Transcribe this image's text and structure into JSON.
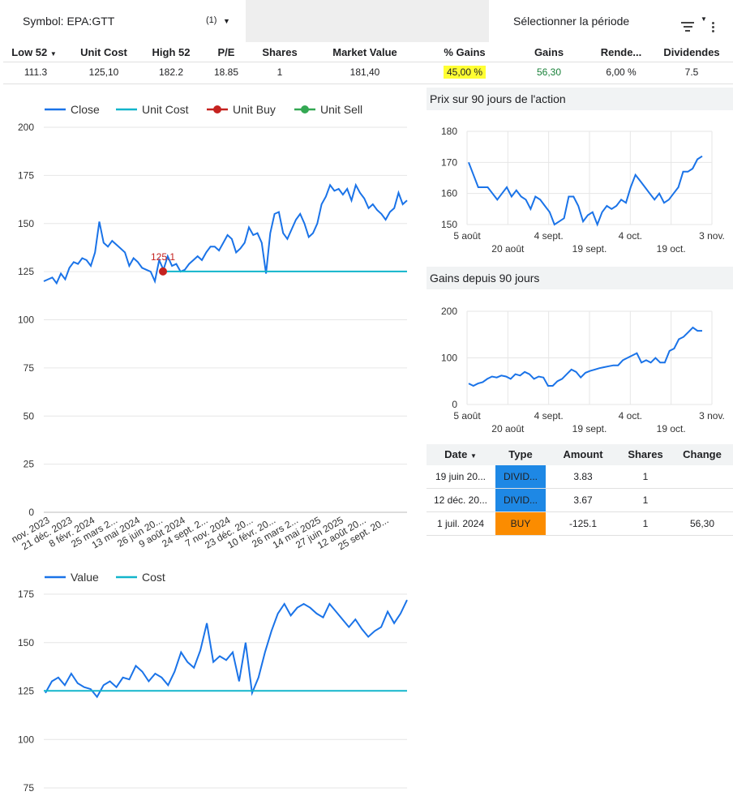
{
  "controls": {
    "symbol_label": "Symbol: EPA:GTT",
    "symbol_count": "(1)",
    "period_label": "Sélectionner la période"
  },
  "summary": {
    "headers": [
      "Low 52",
      "Unit Cost",
      "High 52",
      "P/E",
      "Shares",
      "Market Value",
      "% Gains",
      "Gains",
      "Rende...",
      "Dividendes"
    ],
    "values": [
      "111.3",
      "125,10",
      "182.2",
      "18.85",
      "1",
      "181,40",
      "45,00 %",
      "56,30",
      "6,00 %",
      "7.5"
    ]
  },
  "main_chart": {
    "legend": [
      "Close",
      "Unit Cost",
      "Unit Buy",
      "Unit Sell"
    ],
    "colors": {
      "close": "#1a73e8",
      "unit_cost": "#12b5cb",
      "unit_buy": "#c5221f",
      "unit_sell": "#34a853"
    },
    "buy_label": "125.1"
  },
  "value_chart": {
    "legend": [
      "Value",
      "Cost"
    ]
  },
  "price90": {
    "title": "Prix sur 90 jours de l'action"
  },
  "gains90": {
    "title": "Gains depuis 90 jours"
  },
  "transactions": {
    "headers": [
      "Date",
      "Type",
      "Amount",
      "Shares",
      "Change"
    ],
    "rows": [
      {
        "date": "19 juin 20...",
        "type": "DIVID...",
        "amount": "3.83",
        "shares": "1",
        "change": ""
      },
      {
        "date": "12 déc. 20...",
        "type": "DIVID...",
        "amount": "3.67",
        "shares": "1",
        "change": ""
      },
      {
        "date": "1 juil. 2024",
        "type": "BUY",
        "amount": "-125.1",
        "shares": "1",
        "change": "56,30"
      }
    ]
  },
  "chart_data": [
    {
      "type": "line",
      "y_ticks": [
        0,
        25,
        50,
        75,
        100,
        125,
        150,
        175,
        200
      ],
      "ylim": [
        0,
        200
      ],
      "x_ticks": [
        "nov. 2023",
        "21 déc. 2023",
        "8 févr. 2024",
        "25 mars 2...",
        "13 mai 2024",
        "26 juin 20...",
        "9 août 2024",
        "24 sept. 2...",
        "7 nov. 2024",
        "23 déc. 20...",
        "10 févr. 20...",
        "26 mars 2...",
        "14 mai 2025",
        "27 juin 2025",
        "12 août 20...",
        "25 sept. 20..."
      ],
      "legend": "top",
      "grid": true,
      "series": [
        {
          "name": "Close",
          "values": [
            120,
            121,
            122,
            119,
            124,
            121,
            127,
            130,
            129,
            132,
            131,
            128,
            135,
            151,
            140,
            138,
            141,
            139,
            137,
            135,
            128,
            132,
            130,
            127,
            126,
            125,
            120,
            131,
            126,
            133,
            128,
            129,
            125,
            126,
            129,
            131,
            133,
            131,
            135,
            138,
            138,
            136,
            140,
            144,
            142,
            135,
            137,
            140,
            148,
            144,
            145,
            140,
            124,
            145,
            155,
            156,
            145,
            142,
            147,
            152,
            155,
            150,
            143,
            145,
            150,
            160,
            164,
            170,
            167,
            168,
            165,
            168,
            162,
            170,
            166,
            163,
            158,
            160,
            157,
            155,
            152,
            156,
            158,
            166,
            160,
            162
          ]
        },
        {
          "name": "Unit Cost",
          "values": [
            125.1,
            125.1
          ]
        },
        {
          "name": "Unit Buy",
          "values": [
            125.1
          ]
        }
      ]
    },
    {
      "type": "line",
      "y_ticks": [
        75,
        100,
        125,
        150,
        175
      ],
      "ylim": [
        75,
        180
      ],
      "legend": "top",
      "grid": true,
      "series": [
        {
          "name": "Value",
          "values": [
            124,
            130,
            132,
            128,
            134,
            129,
            127,
            126,
            122,
            128,
            130,
            127,
            132,
            131,
            138,
            135,
            130,
            134,
            132,
            128,
            135,
            145,
            140,
            137,
            146,
            160,
            140,
            143,
            141,
            145,
            130,
            150,
            124,
            132,
            145,
            156,
            165,
            170,
            164,
            168,
            170,
            168,
            165,
            163,
            170,
            166,
            162,
            158,
            162,
            157,
            153,
            156,
            158,
            166,
            160,
            165,
            172
          ]
        },
        {
          "name": "Cost",
          "values": [
            125.1,
            125.1
          ]
        }
      ]
    },
    {
      "type": "line",
      "title": "Prix sur 90 jours de l'action",
      "y_ticks": [
        150,
        160,
        170,
        180
      ],
      "ylim": [
        150,
        180
      ],
      "x_ticks": [
        "5 août",
        "20 août",
        "4 sept.",
        "19 sept.",
        "4 oct.",
        "19 oct.",
        "3 nov."
      ],
      "grid": true,
      "series": [
        {
          "name": "",
          "values": [
            170,
            166,
            162,
            162,
            162,
            160,
            158,
            160,
            162,
            159,
            161,
            159,
            158,
            155,
            159,
            158,
            156,
            154,
            150,
            151,
            152,
            159,
            159,
            156,
            151,
            153,
            154,
            150,
            154,
            156,
            155,
            156,
            158,
            157,
            162,
            166,
            164,
            162,
            160,
            158,
            160,
            157,
            158,
            160,
            162,
            167,
            167,
            168,
            171,
            172
          ]
        }
      ]
    },
    {
      "type": "line",
      "title": "Gains depuis 90 jours",
      "y_ticks": [
        0,
        100,
        200
      ],
      "ylim": [
        0,
        200
      ],
      "x_ticks": [
        "5 août",
        "20 août",
        "4 sept.",
        "19 sept.",
        "4 oct.",
        "19 oct.",
        "3 nov."
      ],
      "grid": true,
      "series": [
        {
          "name": "",
          "values": [
            45,
            40,
            45,
            48,
            55,
            60,
            58,
            62,
            60,
            55,
            65,
            62,
            70,
            65,
            55,
            60,
            58,
            40,
            40,
            50,
            55,
            65,
            75,
            70,
            58,
            68,
            72,
            75,
            78,
            80,
            82,
            84,
            84,
            95,
            100,
            105,
            110,
            90,
            95,
            90,
            100,
            90,
            90,
            115,
            120,
            140,
            145,
            155,
            165,
            158,
            158
          ]
        }
      ]
    }
  ]
}
